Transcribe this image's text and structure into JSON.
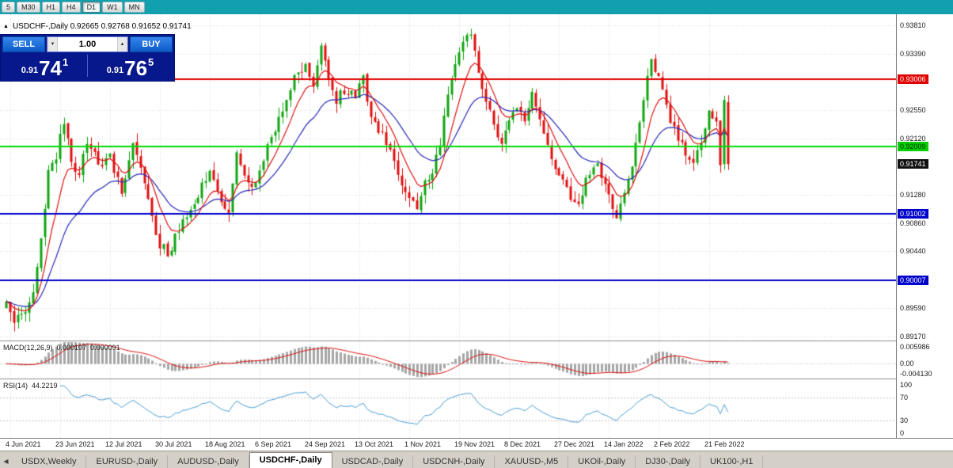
{
  "titlebar": {
    "timeframe_buttons": [
      "5",
      "M30",
      "H1",
      "H4",
      "D1",
      "W1",
      "MN"
    ],
    "active": "D1"
  },
  "icons": {
    "collapse": "▲",
    "volume_down": "▼",
    "volume_up": "▲",
    "tab_scroll_left": "◀"
  },
  "chart_header": {
    "symbol_info": "USDCHF-,Daily  0.92665 0.92768 0.91652 0.91741"
  },
  "trade_panel": {
    "sell_label": "SELL",
    "buy_label": "BUY",
    "volume": "1.00",
    "sell_price_small": "0.91",
    "sell_price_big": "74",
    "sell_price_sup": "1",
    "buy_price_small": "0.91",
    "buy_price_big": "76",
    "buy_price_sup": "5"
  },
  "chart_data": {
    "type": "candlestick_with_indicators",
    "symbol": "USDCHF-",
    "period": "Daily",
    "last_ohlc": {
      "open": 0.92665,
      "high": 0.92768,
      "low": 0.91652,
      "close": 0.91741
    },
    "price_axis": {
      "visible_max": 0.93975,
      "visible_min": 0.89111,
      "decimals": 5,
      "grid_labels": [
        0.9381,
        0.9339,
        0.9255,
        0.9212,
        0.9128,
        0.9086,
        0.9044,
        0.8959,
        0.8917
      ]
    },
    "price_tags": [
      {
        "value": 0.93006,
        "bg": "#e00000",
        "fg": "#ffffff"
      },
      {
        "value": 0.92009,
        "bg": "#00d000",
        "fg": "#002b00"
      },
      {
        "value": 0.91741,
        "bg": "#111111",
        "fg": "#ffffff",
        "current": true
      },
      {
        "value": 0.91002,
        "bg": "#0000cc",
        "fg": "#ffffff"
      },
      {
        "value": 0.90007,
        "bg": "#0000cc",
        "fg": "#ffffff"
      }
    ],
    "hlines": [
      {
        "value": 0.93006,
        "color": "#e00000",
        "width": 2
      },
      {
        "value": 0.92009,
        "color": "#00dd00",
        "width": 2
      },
      {
        "value": 0.91002,
        "color": "#0000cc",
        "width": 2
      },
      {
        "value": 0.90007,
        "color": "#0000cc",
        "width": 2
      }
    ],
    "candles": {
      "count": 189,
      "up_color": "#11a511",
      "down_color": "#e01010",
      "anchors": [
        [
          0,
          0.8968
        ],
        [
          2,
          0.8938
        ],
        [
          4,
          0.8952
        ],
        [
          7,
          0.8978
        ],
        [
          9,
          0.906
        ],
        [
          11,
          0.9165
        ],
        [
          13,
          0.9185
        ],
        [
          15,
          0.924
        ],
        [
          17,
          0.918
        ],
        [
          19,
          0.9155
        ],
        [
          21,
          0.921
        ],
        [
          24,
          0.9175
        ],
        [
          27,
          0.9185
        ],
        [
          30,
          0.913
        ],
        [
          33,
          0.92
        ],
        [
          36,
          0.915
        ],
        [
          38,
          0.909
        ],
        [
          40,
          0.9055
        ],
        [
          42,
          0.904
        ],
        [
          45,
          0.9075
        ],
        [
          48,
          0.911
        ],
        [
          51,
          0.914
        ],
        [
          53,
          0.9165
        ],
        [
          56,
          0.912
        ],
        [
          58,
          0.9105
        ],
        [
          60,
          0.919
        ],
        [
          63,
          0.914
        ],
        [
          66,
          0.916
        ],
        [
          69,
          0.9215
        ],
        [
          72,
          0.926
        ],
        [
          75,
          0.93
        ],
        [
          78,
          0.932
        ],
        [
          80,
          0.9295
        ],
        [
          82,
          0.9345
        ],
        [
          84,
          0.931
        ],
        [
          86,
          0.927
        ],
        [
          88,
          0.9285
        ],
        [
          91,
          0.928
        ],
        [
          93,
          0.93
        ],
        [
          95,
          0.925
        ],
        [
          98,
          0.9215
        ],
        [
          101,
          0.9175
        ],
        [
          103,
          0.914
        ],
        [
          105,
          0.9125
        ],
        [
          107,
          0.91
        ],
        [
          109,
          0.9145
        ],
        [
          111,
          0.916
        ],
        [
          113,
          0.921
        ],
        [
          115,
          0.927
        ],
        [
          117,
          0.932
        ],
        [
          119,
          0.9355
        ],
        [
          121,
          0.9365
        ],
        [
          123,
          0.931
        ],
        [
          125,
          0.927
        ],
        [
          127,
          0.9225
        ],
        [
          129,
          0.92
        ],
        [
          131,
          0.924
        ],
        [
          133,
          0.9265
        ],
        [
          135,
          0.923
        ],
        [
          137,
          0.9275
        ],
        [
          139,
          0.924
        ],
        [
          141,
          0.9205
        ],
        [
          143,
          0.917
        ],
        [
          145,
          0.915
        ],
        [
          147,
          0.9125
        ],
        [
          149,
          0.911
        ],
        [
          151,
          0.915
        ],
        [
          153,
          0.9175
        ],
        [
          155,
          0.916
        ],
        [
          157,
          0.9135
        ],
        [
          159,
          0.9095
        ],
        [
          161,
          0.913
        ],
        [
          163,
          0.917
        ],
        [
          164,
          0.921
        ],
        [
          166,
          0.927
        ],
        [
          168,
          0.933
        ],
        [
          169,
          0.9315
        ],
        [
          171,
          0.928
        ],
        [
          173,
          0.924
        ],
        [
          175,
          0.9215
        ],
        [
          177,
          0.919
        ],
        [
          179,
          0.917
        ],
        [
          181,
          0.9205
        ],
        [
          183,
          0.925
        ],
        [
          185,
          0.923
        ],
        [
          186,
          0.918
        ],
        [
          187,
          0.9268
        ],
        [
          188,
          0.91741
        ]
      ]
    },
    "moving_averages": [
      {
        "period": 8,
        "color": "#dd1111"
      },
      {
        "period": 21,
        "color": "#2727b8"
      }
    ],
    "macd": {
      "label": "MACD(12,26,9)",
      "value_main": "0.000107",
      "value_signal": "0.000091",
      "fast": 12,
      "slow": 26,
      "signal": 9,
      "axis_max": 0.005986,
      "axis_min": -0.00413,
      "axis_labels": [
        "0.005986",
        "0.00",
        "-0.004130"
      ],
      "hist_color": "#a6a6a6",
      "signal_color": "#dd1111"
    },
    "rsi": {
      "label": "RSI(14)",
      "value": "44.2219",
      "period": 14,
      "axis_labels": [
        "100",
        "70",
        "30",
        "0"
      ],
      "levels": [
        70,
        30
      ],
      "color": "#4a9fd4"
    }
  },
  "time_axis": {
    "labels": [
      {
        "i": 1,
        "t": "4 Jun 2021"
      },
      {
        "i": 14,
        "t": "23 Jun 2021"
      },
      {
        "i": 27,
        "t": "12 Jul 2021"
      },
      {
        "i": 40,
        "t": "30 Jul 2021"
      },
      {
        "i": 53,
        "t": "18 Aug 2021"
      },
      {
        "i": 66,
        "t": "6 Sep 2021"
      },
      {
        "i": 79,
        "t": "24 Sep 2021"
      },
      {
        "i": 92,
        "t": "13 Oct 2021"
      },
      {
        "i": 105,
        "t": "1 Nov 2021"
      },
      {
        "i": 118,
        "t": "19 Nov 2021"
      },
      {
        "i": 131,
        "t": "8 Dec 2021"
      },
      {
        "i": 144,
        "t": "27 Dec 2021"
      },
      {
        "i": 157,
        "t": "14 Jan 2022"
      },
      {
        "i": 170,
        "t": "2 Feb 2022"
      },
      {
        "i": 183,
        "t": "21 Feb 2022"
      }
    ]
  },
  "bottom_tabs": {
    "items": [
      "USDX,Weekly",
      "EURUSD-,Daily",
      "AUDUSD-,Daily",
      "USDCHF-,Daily",
      "USDCAD-,Daily",
      "USDCNH-,Daily",
      "XAUUSD-,M5",
      "UKOil-,Daily",
      "DJ30-,Daily",
      "UK100-,H1"
    ],
    "active": "USDCHF-,Daily"
  }
}
